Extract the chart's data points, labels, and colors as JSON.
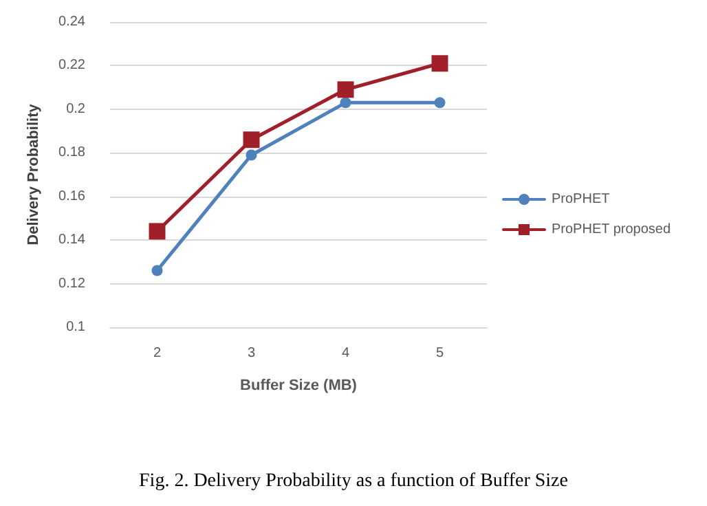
{
  "chart_data": {
    "type": "line",
    "xlabel": "Buffer Size (MB)",
    "ylabel": "Delivery Probability",
    "categories": [
      "2",
      "3",
      "4",
      "5"
    ],
    "series": [
      {
        "name": "ProPHET",
        "color": "#4f81bd",
        "marker": "circle",
        "values": [
          0.126,
          0.179,
          0.203,
          0.203
        ]
      },
      {
        "name": "ProPHET proposed",
        "color": "#a0202a",
        "marker": "square",
        "values": [
          0.144,
          0.186,
          0.209,
          0.221
        ]
      }
    ],
    "ylim": [
      0.1,
      0.24
    ],
    "yticks": [
      0.1,
      0.12,
      0.14,
      0.16,
      0.18,
      0.2,
      0.22,
      0.24
    ],
    "grid": "y",
    "legend": "right",
    "annotations": [
      "Fig. 2. Delivery Probability as a function of Buffer Size"
    ]
  }
}
